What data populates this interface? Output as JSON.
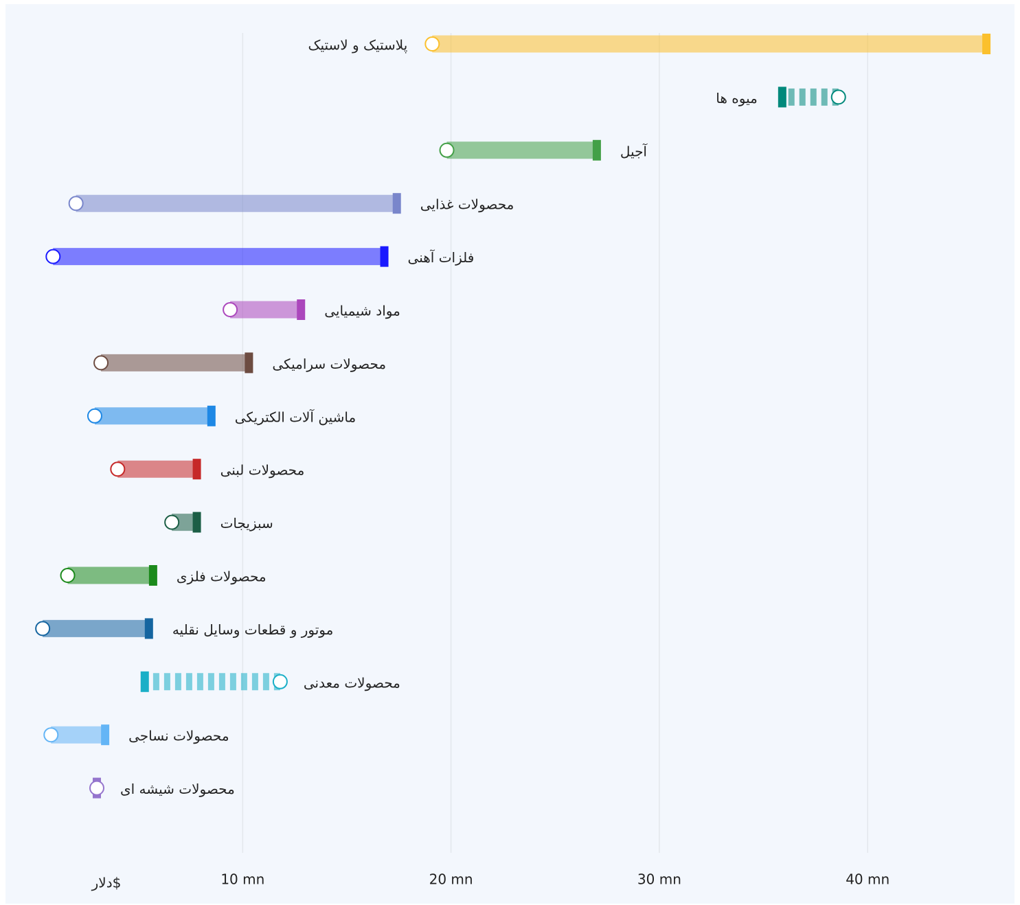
{
  "chart_data": {
    "type": "dumbbell",
    "categories": [
      "پلاستیک و لاستیک",
      "میوه ها",
      "آجیل",
      "محصولات غذایی",
      "فلزات آهنی",
      "مواد شیمیایی",
      "محصولات سرامیکی",
      "ماشین آلات الکتریکی",
      "محصولات لبنی",
      "سبزیجات",
      "محصولات فلزی",
      "موتور و قطعات وسایل نقلیه",
      "محصولات معدنی",
      "محصولات نساجی",
      "محصولات شیشه ای"
    ],
    "start": [
      19.1,
      38.6,
      19.8,
      2.0,
      0.9,
      9.4,
      3.2,
      2.9,
      4.0,
      6.6,
      1.6,
      0.4,
      11.8,
      0.8,
      3.0
    ],
    "end": [
      45.7,
      35.9,
      27.0,
      17.4,
      16.8,
      12.8,
      10.3,
      8.5,
      7.8,
      7.8,
      5.7,
      5.5,
      5.3,
      3.4,
      3.0
    ],
    "colors": [
      "#fbc02d",
      "#00897b",
      "#43a047",
      "#7986cb",
      "#1a1aff",
      "#ab47bc",
      "#6d4c41",
      "#1e88e5",
      "#c62828",
      "#1b5e45",
      "#1b8a1b",
      "#1565a0",
      "#1aafc7",
      "#64b5f6",
      "#9575cd"
    ],
    "x_label": "دلار$",
    "xlim": [
      0,
      47
    ],
    "xticks": [
      {
        "value": 10,
        "label": "10 mn"
      },
      {
        "value": 20,
        "label": "20 mn"
      },
      {
        "value": 30,
        "label": "30 mn"
      },
      {
        "value": 40,
        "label": "40 mn"
      }
    ],
    "grid": true
  }
}
